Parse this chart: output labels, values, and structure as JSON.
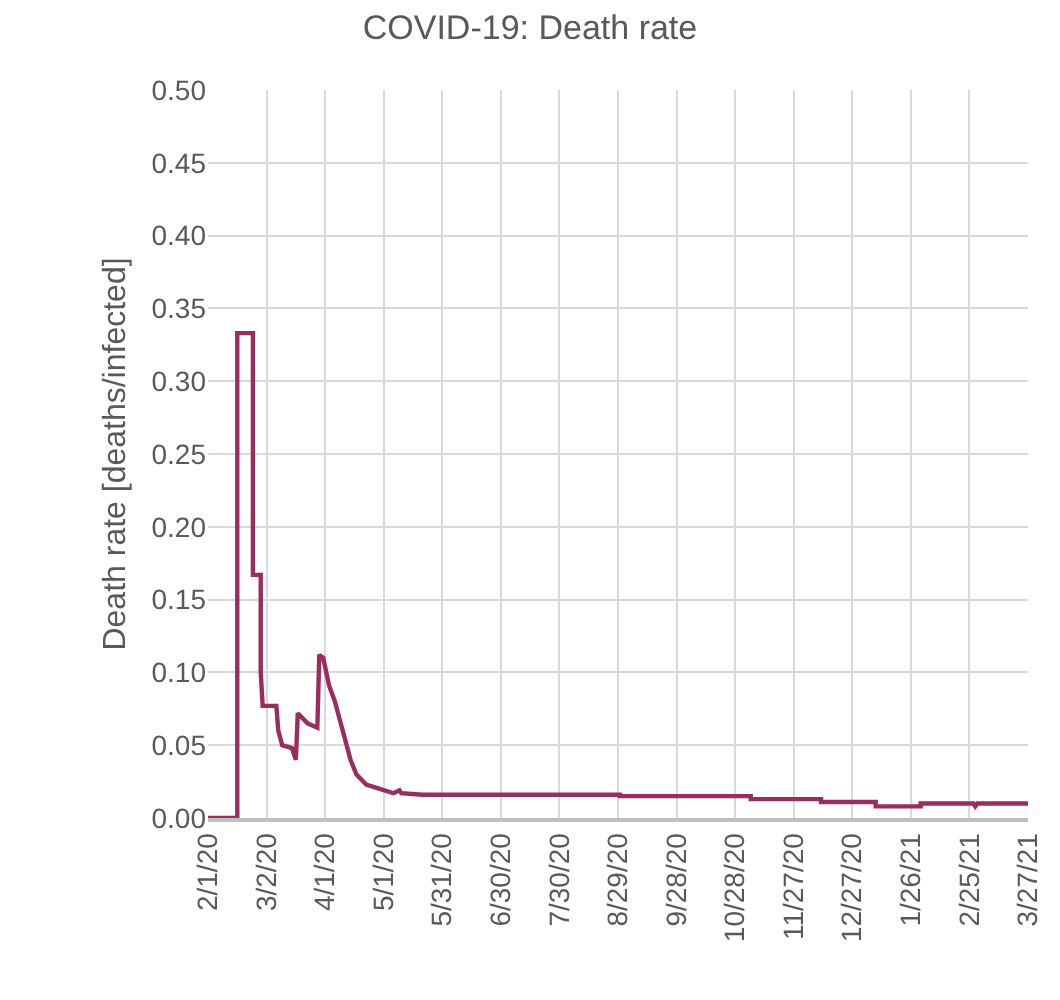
{
  "chart_data": {
    "type": "line",
    "title": "COVID-19: Death rate",
    "ylabel": "Death rate [deaths/infected]",
    "x": [
      "2020-02-01",
      "2020-02-16",
      "2020-02-16",
      "2020-02-24",
      "2020-02-24",
      "2020-02-28",
      "2020-02-28",
      "2020-02-29",
      "2020-03-07",
      "2020-03-08",
      "2020-03-10",
      "2020-03-15",
      "2020-03-17",
      "2020-03-18",
      "2020-03-23",
      "2020-03-28",
      "2020-03-29",
      "2020-03-31",
      "2020-04-03",
      "2020-04-06",
      "2020-04-09",
      "2020-04-11",
      "2020-04-14",
      "2020-04-17",
      "2020-04-22",
      "2020-04-29",
      "2020-05-06",
      "2020-05-09",
      "2020-05-10",
      "2020-05-21",
      "2020-08-30",
      "2020-08-30",
      "2020-11-05",
      "2020-11-05",
      "2020-12-11",
      "2020-12-11",
      "2021-01-08",
      "2021-01-08",
      "2021-01-31",
      "2021-01-31",
      "2021-02-27",
      "2021-02-28",
      "2021-03-01",
      "2021-03-27"
    ],
    "series": [
      {
        "color": "#9b2d5e",
        "values": [
          0,
          0,
          0.333,
          0.333,
          0.167,
          0.167,
          0.1,
          0.077,
          0.077,
          0.06,
          0.05,
          0.048,
          0.04,
          0.072,
          0.065,
          0.062,
          0.112,
          0.11,
          0.091,
          0.08,
          0.065,
          0.055,
          0.04,
          0.03,
          0.023,
          0.02,
          0.017,
          0.019,
          0.017,
          0.016,
          0.016,
          0.015,
          0.015,
          0.013,
          0.013,
          0.011,
          0.011,
          0.008,
          0.008,
          0.01,
          0.01,
          0.008,
          0.01,
          0.01
        ]
      }
    ],
    "xlim": [
      "2020-02-01",
      "2021-03-27"
    ],
    "xticks": [
      {
        "value": "2020-02-01",
        "label": "2/1/20"
      },
      {
        "value": "2020-03-02",
        "label": "3/2/20"
      },
      {
        "value": "2020-04-01",
        "label": "4/1/20"
      },
      {
        "value": "2020-05-01",
        "label": "5/1/20"
      },
      {
        "value": "2020-05-31",
        "label": "5/31/20"
      },
      {
        "value": "2020-06-30",
        "label": "6/30/20"
      },
      {
        "value": "2020-07-30",
        "label": "7/30/20"
      },
      {
        "value": "2020-08-29",
        "label": "8/29/20"
      },
      {
        "value": "2020-09-28",
        "label": "9/28/20"
      },
      {
        "value": "2020-10-28",
        "label": "10/28/20"
      },
      {
        "value": "2020-11-27",
        "label": "11/27/20"
      },
      {
        "value": "2020-12-27",
        "label": "12/27/20"
      },
      {
        "value": "2021-01-26",
        "label": "1/26/21"
      },
      {
        "value": "2021-02-25",
        "label": "2/25/21"
      },
      {
        "value": "2021-03-27",
        "label": "3/27/21"
      }
    ],
    "ylim": [
      0,
      0.5
    ],
    "yticks": [
      {
        "value": 0,
        "label": "0.00"
      },
      {
        "value": 0.05,
        "label": "0.05"
      },
      {
        "value": 0.1,
        "label": "0.10"
      },
      {
        "value": 0.15,
        "label": "0.15"
      },
      {
        "value": 0.2,
        "label": "0.20"
      },
      {
        "value": 0.25,
        "label": "0.25"
      },
      {
        "value": 0.3,
        "label": "0.30"
      },
      {
        "value": 0.35,
        "label": "0.35"
      },
      {
        "value": 0.4,
        "label": "0.40"
      },
      {
        "value": 0.45,
        "label": "0.45"
      },
      {
        "value": 0.5,
        "label": "0.50"
      }
    ],
    "grid": true,
    "marker": "none",
    "line_style": "solid"
  }
}
